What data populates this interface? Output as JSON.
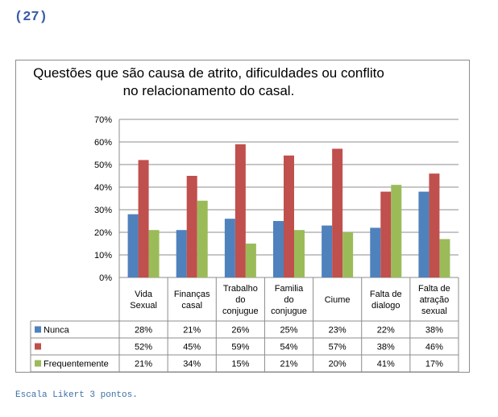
{
  "page_label": "(27)",
  "footer_note": "Escala Likert 3 pontos.",
  "colors": {
    "Nunca": "#4f81bd",
    "Unnamed": "#c0504d",
    "Frequentemente": "#9bbb59"
  },
  "chart_data": {
    "type": "bar",
    "title": "Questões que são causa de atrito, dificuldades ou conflito no relacionamento do casal.",
    "title_lines": [
      "Questões que são causa de atrito, dificuldades ou conflito",
      "no relacionamento do casal."
    ],
    "categories": [
      [
        "Vida",
        "Sexual"
      ],
      [
        "Finanças",
        "casal"
      ],
      [
        "Trabalho",
        "do",
        "conjugue"
      ],
      [
        "Familia",
        "do",
        "conjugue"
      ],
      [
        "Ciume"
      ],
      [
        "Falta de",
        "dialogo"
      ],
      [
        "Falta de",
        "atração",
        "sexual"
      ]
    ],
    "ylim": [
      0,
      70
    ],
    "yticks": [
      "0%",
      "10%",
      "20%",
      "30%",
      "40%",
      "50%",
      "60%",
      "70%"
    ],
    "grid": true,
    "legend": "table-below",
    "series": [
      {
        "name": "Nunca",
        "values": [
          28,
          21,
          26,
          25,
          23,
          22,
          38
        ],
        "labels": [
          "28%",
          "21%",
          "26%",
          "25%",
          "23%",
          "22%",
          "38%"
        ]
      },
      {
        "name": "",
        "values": [
          52,
          45,
          59,
          54,
          57,
          38,
          46
        ],
        "labels": [
          "52%",
          "45%",
          "59%",
          "54%",
          "57%",
          "38%",
          "46%"
        ]
      },
      {
        "name": "Frequentemente",
        "values": [
          21,
          34,
          15,
          21,
          20,
          41,
          17
        ],
        "labels": [
          "21%",
          "34%",
          "15%",
          "21%",
          "20%",
          "41%",
          "17%"
        ]
      }
    ]
  }
}
